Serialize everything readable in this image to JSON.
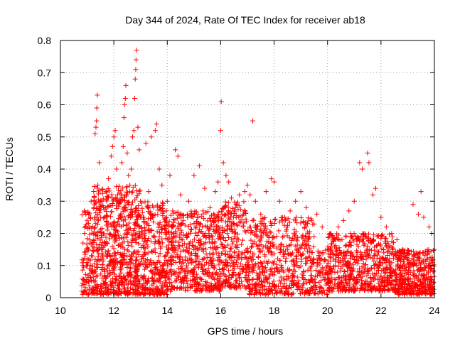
{
  "chart_data": {
    "type": "scatter",
    "title": "Day 344 of 2024, Rate Of TEC Index for receiver ab18",
    "xlabel": "GPS time / hours",
    "ylabel": "ROTI / TECUs",
    "xlim": [
      10,
      24
    ],
    "ylim": [
      0,
      0.8
    ],
    "xticks": [
      10,
      12,
      14,
      16,
      18,
      20,
      22,
      24
    ],
    "xtick_labels": [
      "10",
      "12",
      "14",
      "16",
      "18",
      "20",
      "22",
      "24"
    ],
    "yticks": [
      0,
      0.1,
      0.2,
      0.3,
      0.4,
      0.5,
      0.6,
      0.7,
      0.8
    ],
    "ytick_labels": [
      "0",
      "0.1",
      "0.2",
      "0.3",
      "0.4",
      "0.5",
      "0.6",
      "0.7",
      "0.8"
    ],
    "grid": true,
    "marker": "+",
    "color": "#ff0000",
    "series": [
      {
        "name": "ROTI",
        "points": [
          [
            10.8,
            0.02
          ],
          [
            10.85,
            0.1
          ],
          [
            10.9,
            0.2
          ],
          [
            10.95,
            0.26
          ],
          [
            11.0,
            0.05
          ],
          [
            11.05,
            0.15
          ],
          [
            11.1,
            0.22
          ],
          [
            11.15,
            0.3
          ],
          [
            11.2,
            0.08
          ],
          [
            11.25,
            0.18
          ],
          [
            11.3,
            0.51
          ],
          [
            11.33,
            0.53
          ],
          [
            11.35,
            0.55
          ],
          [
            11.36,
            0.59
          ],
          [
            11.38,
            0.63
          ],
          [
            11.4,
            0.35
          ],
          [
            11.45,
            0.42
          ],
          [
            11.5,
            0.25
          ],
          [
            11.6,
            0.12
          ],
          [
            11.7,
            0.33
          ],
          [
            11.8,
            0.37
          ],
          [
            11.9,
            0.44
          ],
          [
            11.95,
            0.47
          ],
          [
            12.0,
            0.5
          ],
          [
            12.05,
            0.52
          ],
          [
            12.1,
            0.4
          ],
          [
            12.2,
            0.3
          ],
          [
            12.3,
            0.42
          ],
          [
            12.35,
            0.47
          ],
          [
            12.38,
            0.56
          ],
          [
            12.4,
            0.6
          ],
          [
            12.43,
            0.62
          ],
          [
            12.45,
            0.66
          ],
          [
            12.5,
            0.45
          ],
          [
            12.55,
            0.38
          ],
          [
            12.6,
            0.35
          ],
          [
            12.65,
            0.4
          ],
          [
            12.7,
            0.5
          ],
          [
            12.75,
            0.52
          ],
          [
            12.78,
            0.62
          ],
          [
            12.8,
            0.68
          ],
          [
            12.82,
            0.71
          ],
          [
            12.83,
            0.74
          ],
          [
            12.85,
            0.77
          ],
          [
            12.9,
            0.53
          ],
          [
            12.95,
            0.46
          ],
          [
            13.0,
            0.3
          ],
          [
            13.1,
            0.25
          ],
          [
            13.2,
            0.48
          ],
          [
            13.3,
            0.33
          ],
          [
            13.4,
            0.5
          ],
          [
            13.5,
            0.28
          ],
          [
            13.55,
            0.52
          ],
          [
            13.6,
            0.54
          ],
          [
            13.7,
            0.4
          ],
          [
            13.8,
            0.35
          ],
          [
            13.9,
            0.22
          ],
          [
            14.0,
            0.3
          ],
          [
            14.1,
            0.38
          ],
          [
            14.2,
            0.27
          ],
          [
            14.3,
            0.46
          ],
          [
            14.4,
            0.44
          ],
          [
            14.5,
            0.32
          ],
          [
            14.6,
            0.24
          ],
          [
            14.8,
            0.3
          ],
          [
            15.0,
            0.38
          ],
          [
            15.2,
            0.41
          ],
          [
            15.4,
            0.34
          ],
          [
            15.6,
            0.28
          ],
          [
            15.8,
            0.33
          ],
          [
            15.9,
            0.36
          ],
          [
            16.0,
            0.52
          ],
          [
            16.02,
            0.61
          ],
          [
            16.1,
            0.42
          ],
          [
            16.2,
            0.38
          ],
          [
            16.3,
            0.36
          ],
          [
            16.4,
            0.31
          ],
          [
            16.5,
            0.27
          ],
          [
            16.7,
            0.32
          ],
          [
            16.9,
            0.33
          ],
          [
            17.0,
            0.35
          ],
          [
            17.1,
            0.32
          ],
          [
            17.2,
            0.55
          ],
          [
            17.3,
            0.3
          ],
          [
            17.5,
            0.26
          ],
          [
            17.7,
            0.33
          ],
          [
            17.9,
            0.37
          ],
          [
            18.0,
            0.36
          ],
          [
            18.2,
            0.3
          ],
          [
            18.4,
            0.25
          ],
          [
            18.6,
            0.27
          ],
          [
            18.8,
            0.3
          ],
          [
            19.0,
            0.33
          ],
          [
            19.2,
            0.28
          ],
          [
            19.4,
            0.24
          ],
          [
            19.6,
            0.26
          ],
          [
            19.8,
            0.22
          ],
          [
            20.0,
            0.15
          ],
          [
            20.2,
            0.18
          ],
          [
            20.4,
            0.22
          ],
          [
            20.6,
            0.24
          ],
          [
            20.8,
            0.27
          ],
          [
            21.0,
            0.3
          ],
          [
            21.2,
            0.42
          ],
          [
            21.3,
            0.4
          ],
          [
            21.5,
            0.45
          ],
          [
            21.55,
            0.42
          ],
          [
            21.7,
            0.32
          ],
          [
            21.8,
            0.34
          ],
          [
            22.0,
            0.25
          ],
          [
            22.2,
            0.22
          ],
          [
            22.4,
            0.2
          ],
          [
            22.6,
            0.18
          ],
          [
            22.8,
            0.15
          ],
          [
            23.0,
            0.12
          ],
          [
            23.2,
            0.29
          ],
          [
            23.4,
            0.26
          ],
          [
            23.5,
            0.33
          ],
          [
            23.6,
            0.25
          ],
          [
            23.8,
            0.22
          ],
          [
            23.9,
            0.2
          ],
          [
            24.0,
            0.15
          ]
        ]
      }
    ],
    "bulk_density": [
      {
        "x_range": [
          10.8,
          11.2
        ],
        "y_range": [
          0.01,
          0.27
        ],
        "count": 90
      },
      {
        "x_range": [
          11.2,
          13.0
        ],
        "y_range": [
          0.01,
          0.35
        ],
        "count": 700
      },
      {
        "x_range": [
          13.0,
          14.0
        ],
        "y_range": [
          0.01,
          0.3
        ],
        "count": 320
      },
      {
        "x_range": [
          14.0,
          16.0
        ],
        "y_range": [
          0.02,
          0.27
        ],
        "count": 520
      },
      {
        "x_range": [
          16.0,
          17.0
        ],
        "y_range": [
          0.03,
          0.3
        ],
        "count": 260
      },
      {
        "x_range": [
          17.0,
          19.5
        ],
        "y_range": [
          0.01,
          0.25
        ],
        "count": 560
      },
      {
        "x_range": [
          19.5,
          20.0
        ],
        "y_range": [
          0.01,
          0.15
        ],
        "count": 70
      },
      {
        "x_range": [
          20.0,
          22.5
        ],
        "y_range": [
          0.02,
          0.2
        ],
        "count": 600
      },
      {
        "x_range": [
          22.5,
          24.0
        ],
        "y_range": [
          0.01,
          0.15
        ],
        "count": 420
      }
    ]
  }
}
